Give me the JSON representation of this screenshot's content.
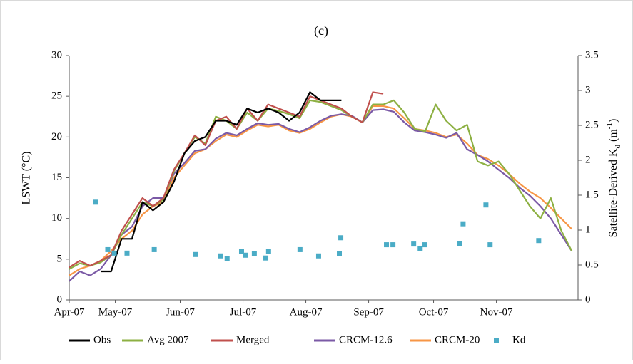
{
  "chart_data": {
    "type": "line",
    "title": "(c)",
    "ylabel": "LSWT (°C)",
    "y2label": [
      "Satellite-Derived K",
      "d",
      "(m",
      "-1",
      ")"
    ],
    "xlim": [
      0,
      243
    ],
    "xticks": [
      {
        "value": 0,
        "label": "Apr-07"
      },
      {
        "value": 22,
        "label": "May-07"
      },
      {
        "value": 53,
        "label": "Jun-07"
      },
      {
        "value": 83,
        "label": "Jul-07"
      },
      {
        "value": 113,
        "label": "Aug-07"
      },
      {
        "value": 143,
        "label": "Sep-07"
      },
      {
        "value": 174,
        "label": "Oct-07"
      },
      {
        "value": 204,
        "label": "Nov-07"
      }
    ],
    "ylim": [
      0,
      30
    ],
    "yticks": [
      0,
      5,
      10,
      15,
      20,
      25,
      30
    ],
    "y2lim": [
      0,
      3.5
    ],
    "y2ticks": [
      0,
      0.5,
      1,
      1.5,
      2,
      2.5,
      3,
      3.5
    ],
    "legend": "bottom",
    "grid": false,
    "x": [
      0,
      5,
      10,
      15,
      20,
      25,
      30,
      35,
      40,
      45,
      50,
      55,
      60,
      65,
      70,
      75,
      80,
      85,
      90,
      95,
      100,
      105,
      110,
      115,
      120,
      125,
      130,
      135,
      140,
      145,
      150,
      155,
      160,
      165,
      170,
      175,
      180,
      185,
      190,
      195,
      200,
      205,
      210,
      215,
      220,
      225,
      230,
      235,
      240
    ],
    "series": [
      {
        "name": "Obs",
        "color": "#000000",
        "values": [
          null,
          null,
          null,
          3.5,
          3.5,
          7.5,
          7.5,
          12,
          11,
          12,
          14.5,
          18,
          19.5,
          20,
          22,
          22,
          21.5,
          23.5,
          23,
          23.5,
          23,
          22,
          23,
          25.5,
          24.5,
          24.5,
          24.5,
          null,
          null,
          null,
          null,
          null,
          null,
          null,
          null,
          null,
          null,
          null,
          null,
          null,
          null,
          null,
          null,
          null,
          null,
          null,
          null,
          null,
          null
        ]
      },
      {
        "name": "Avg 2007",
        "color": "#8db043",
        "values": [
          3.8,
          4.5,
          4.2,
          4.6,
          5.5,
          8,
          10,
          12,
          11.5,
          12.3,
          15.8,
          18,
          20,
          19.2,
          22.5,
          22,
          21,
          23,
          22,
          23.5,
          23.2,
          22.8,
          22.3,
          24.5,
          24.3,
          23.8,
          23.3,
          22.5,
          21.8,
          24,
          24,
          24.5,
          23,
          21,
          20.7,
          24,
          22,
          20.8,
          21.5,
          17,
          16.5,
          17,
          15.5,
          13.5,
          11.5,
          10,
          12.5,
          8.5,
          6
        ]
      },
      {
        "name": "Merged",
        "color": "#c0504d",
        "values": [
          4,
          4.8,
          4.2,
          4.8,
          5.5,
          8.5,
          10.5,
          12.5,
          11.5,
          12.5,
          16,
          18,
          20.2,
          19,
          22,
          22.5,
          21,
          23.5,
          22,
          24,
          23.5,
          23,
          22.5,
          25,
          24.5,
          24,
          23.5,
          22.5,
          21.8,
          25.5,
          25.3,
          null,
          null,
          null,
          null,
          null,
          null,
          null,
          null,
          null,
          null,
          null,
          null,
          null,
          null,
          null,
          null,
          null,
          null
        ]
      },
      {
        "name": "CRCM-12.6",
        "color": "#7b5aa6",
        "values": [
          2.3,
          3.5,
          3,
          3.8,
          5.5,
          8,
          9,
          11.5,
          12.5,
          12.5,
          15.5,
          16.8,
          18.3,
          18.5,
          19.8,
          20.5,
          20.2,
          21,
          21.7,
          21.5,
          21.6,
          21,
          20.6,
          21.2,
          22,
          22.6,
          22.8,
          22.6,
          21.8,
          23.3,
          23.4,
          23.1,
          21.8,
          20.8,
          20.6,
          20.3,
          19.9,
          20.5,
          18.5,
          17.8,
          17,
          16,
          15,
          13.8,
          12.8,
          11.5,
          10,
          8,
          6
        ]
      },
      {
        "name": "CRCM-20",
        "color": "#f79646",
        "values": [
          3,
          3.8,
          4.2,
          4.8,
          6,
          7.5,
          8.5,
          10.5,
          11.5,
          12,
          15,
          16.5,
          18,
          18.5,
          19.5,
          20.3,
          20,
          20.8,
          21.5,
          21.3,
          21.5,
          20.8,
          20.5,
          21,
          21.8,
          22.5,
          22.8,
          22.5,
          21.8,
          23.8,
          23.8,
          23.5,
          22.3,
          21,
          20.8,
          20.5,
          20,
          20.3,
          19.2,
          17.8,
          17.3,
          16.5,
          15.5,
          14.3,
          13.3,
          12.5,
          11.3,
          10,
          8.7
        ]
      }
    ],
    "kd": {
      "name": "Kd",
      "color": "#4bacc6",
      "axis": "y2",
      "x": [
        12.6,
        18.4,
        21.5,
        27.6,
        40.6,
        60.4,
        72.4,
        75.4,
        82.3,
        84.3,
        88.4,
        93.9,
        95.2,
        110.2,
        119.1,
        129.0,
        129.7,
        151.5,
        154.6,
        164.5,
        167.6,
        169.6,
        186.3,
        188.1,
        199.0,
        201.0,
        224.2
      ],
      "values": [
        1.4,
        0.72,
        0.67,
        0.67,
        0.72,
        0.65,
        0.63,
        0.59,
        0.69,
        0.64,
        0.66,
        0.6,
        0.69,
        0.72,
        0.63,
        0.66,
        0.89,
        0.79,
        0.79,
        0.8,
        0.74,
        0.79,
        0.81,
        1.09,
        1.36,
        0.79,
        0.85
      ]
    }
  }
}
